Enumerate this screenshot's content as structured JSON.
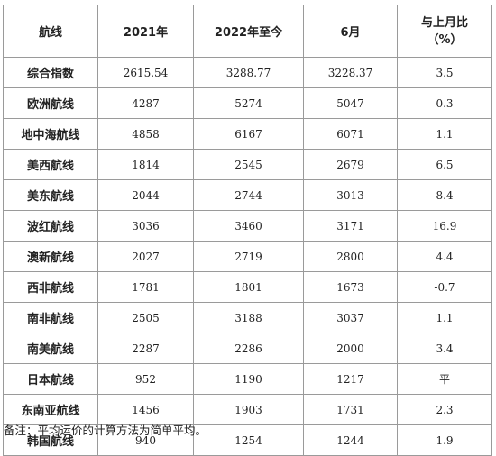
{
  "table": {
    "headers": [
      "航线",
      "2021年",
      "2022年至今",
      "6月",
      "与上月比",
      "（%）"
    ],
    "rows": [
      [
        "综合指数",
        "2615.54",
        "3288.77",
        "3228.37",
        "3.5"
      ],
      [
        "欧洲航线",
        "4287",
        "5274",
        "5047",
        "0.3"
      ],
      [
        "地中海航线",
        "4858",
        "6167",
        "6071",
        "1.1"
      ],
      [
        "美西航线",
        "1814",
        "2545",
        "2679",
        "6.5"
      ],
      [
        "美东航线",
        "2044",
        "2744",
        "3013",
        "8.4"
      ],
      [
        "波红航线",
        "3036",
        "3460",
        "3171",
        "16.9"
      ],
      [
        "澳新航线",
        "2027",
        "2719",
        "2800",
        "4.4"
      ],
      [
        "西非航线",
        "1781",
        "1801",
        "1673",
        "-0.7"
      ],
      [
        "南非航线",
        "2505",
        "3188",
        "3037",
        "1.1"
      ],
      [
        "南美航线",
        "2287",
        "2286",
        "2000",
        "3.4"
      ],
      [
        "日本航线",
        "952",
        "1190",
        "1217",
        "平"
      ],
      [
        "东南亚航线",
        "1456",
        "1903",
        "1731",
        "2.3"
      ],
      [
        "韩国航线",
        "940",
        "1254",
        "1244",
        "1.9"
      ]
    ]
  },
  "note": "备注：平均运价的计算方法为简单平均。"
}
